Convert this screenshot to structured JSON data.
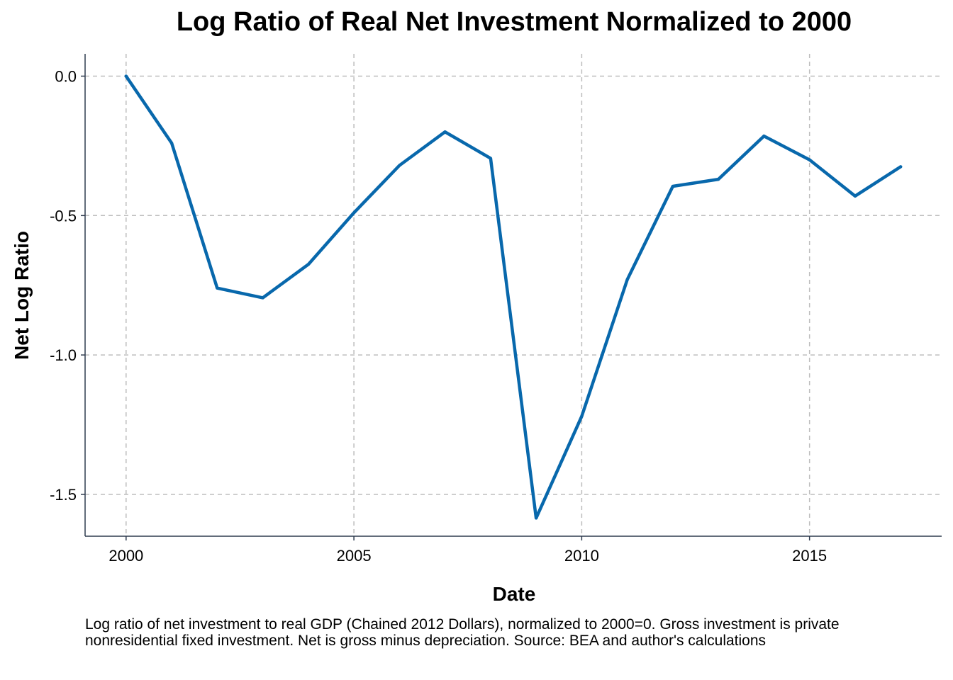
{
  "chart_data": {
    "type": "line",
    "title": "Log Ratio of Real Net Investment Normalized to 2000",
    "xlabel": "Date",
    "ylabel": "Net Log Ratio",
    "caption": "Log ratio of net investment to real GDP (Chained 2012 Dollars), normalized to 2000=0. Gross investment is private nonresidential fixed investment. Net is gross minus depreciation. Source: BEA and author's calculations",
    "xlim": [
      1999.1,
      2017.9
    ],
    "ylim": [
      -1.65,
      0.08
    ],
    "x_ticks": [
      2000,
      2005,
      2010,
      2015
    ],
    "x_tick_labels": [
      "2000",
      "2005",
      "2010",
      "2015"
    ],
    "y_ticks": [
      0.0,
      -0.5,
      -1.0,
      -1.5
    ],
    "y_tick_labels": [
      "0.0",
      "-0.5",
      "-1.0",
      "-1.5"
    ],
    "grid": "dashed major gridlines",
    "line_color": "#0868AC",
    "grid_color": "#BDBDBD",
    "x": [
      2000,
      2001,
      2002,
      2003,
      2004,
      2005,
      2006,
      2007,
      2008,
      2009,
      2010,
      2011,
      2012,
      2013,
      2014,
      2015,
      2016,
      2017
    ],
    "y": [
      0.0,
      -0.24,
      -0.76,
      -0.795,
      -0.675,
      -0.49,
      -0.32,
      -0.2,
      -0.295,
      -1.585,
      -1.22,
      -0.73,
      -0.395,
      -0.37,
      -0.215,
      -0.3,
      -0.43,
      -0.325
    ]
  }
}
